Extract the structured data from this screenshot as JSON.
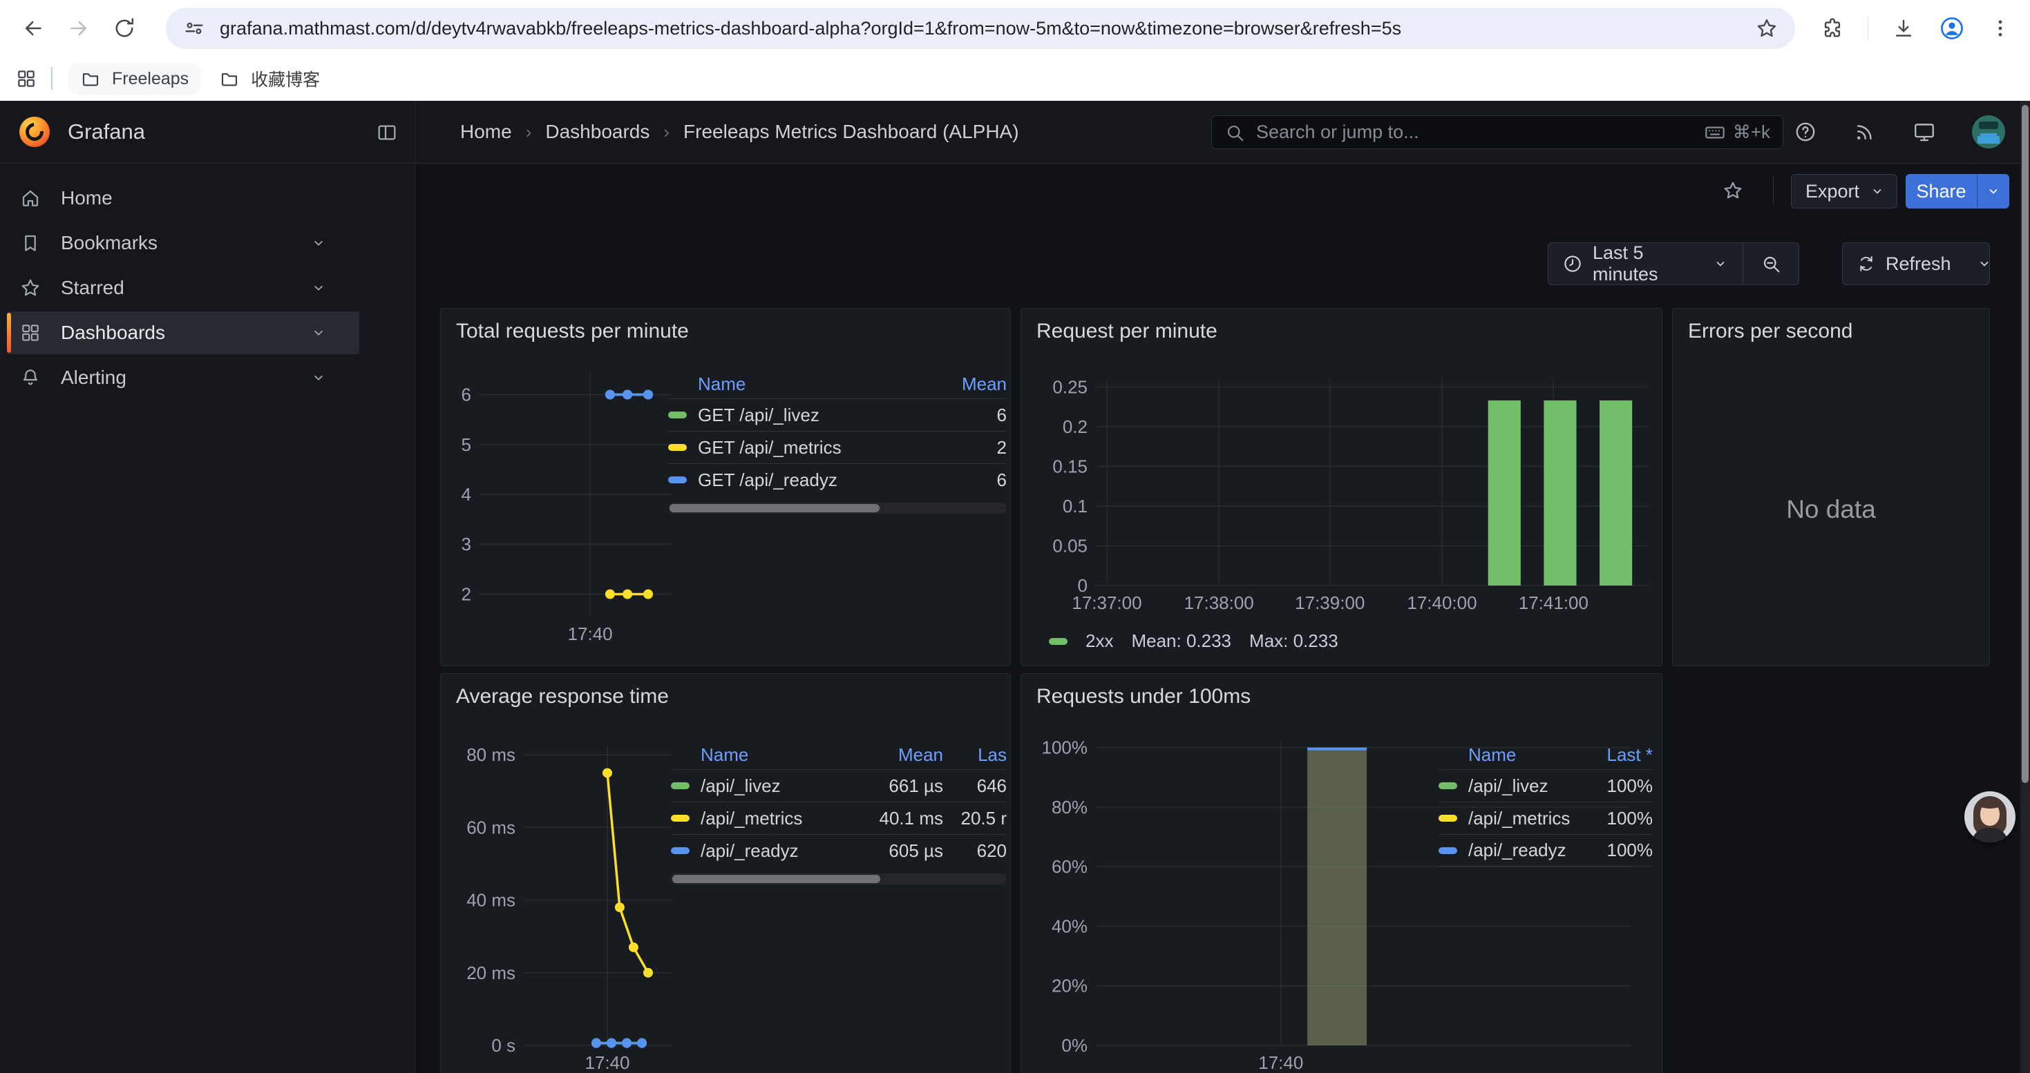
{
  "browser": {
    "url": "grafana.mathmast.com/d/deytv4rwavabkb/freeleaps-metrics-dashboard-alpha?orgId=1&from=now-5m&to=now&timezone=browser&refresh=5s",
    "bookmarks": [
      {
        "label": "Freeleaps",
        "icon": "folder-icon"
      },
      {
        "label": "收藏博客",
        "icon": "folder-icon"
      }
    ]
  },
  "nav": {
    "brand": "Grafana",
    "breadcrumb": [
      "Home",
      "Dashboards",
      "Freeleaps Metrics Dashboard (ALPHA)"
    ],
    "search_placeholder": "Search or jump to...",
    "search_shortcut": "⌘+k"
  },
  "sidebar": {
    "items": [
      {
        "label": "Home",
        "icon": "home-icon",
        "expandable": false,
        "active": false
      },
      {
        "label": "Bookmarks",
        "icon": "bookmark-icon",
        "expandable": true,
        "active": false
      },
      {
        "label": "Starred",
        "icon": "star-icon",
        "expandable": true,
        "active": false
      },
      {
        "label": "Dashboards",
        "icon": "dashboards-grid-icon",
        "expandable": true,
        "active": true
      },
      {
        "label": "Alerting",
        "icon": "bell-icon",
        "expandable": true,
        "active": false
      }
    ]
  },
  "toolbar": {
    "export_label": "Export",
    "share_label": "Share"
  },
  "timebar": {
    "range_label": "Last 5 minutes",
    "refresh_label": "Refresh"
  },
  "colors": {
    "green": "#73bf69",
    "yellow": "#fade2a",
    "blue": "#5794f2",
    "accent_blue": "#3d71d9",
    "orange": "#ff8833"
  },
  "panels": [
    {
      "title": "Total requests per minute",
      "chart_data": {
        "type": "line",
        "ylim": [
          1.55,
          6.45
        ],
        "yticks": [
          {
            "v": 6,
            "label": "6"
          },
          {
            "v": 5,
            "label": "5"
          },
          {
            "v": 4,
            "label": "4"
          },
          {
            "v": 3,
            "label": "3"
          },
          {
            "v": 2,
            "label": "2"
          }
        ],
        "xticks": [
          {
            "f": 0.578,
            "label": "17:40"
          }
        ],
        "series": [
          {
            "name": "GET /api/_livez",
            "color": "#73bf69",
            "points": [
              {
                "f": 0.682,
                "v": 6
              },
              {
                "f": 0.773,
                "v": 6
              },
              {
                "f": 0.881,
                "v": 6
              }
            ]
          },
          {
            "name": "GET /api/_metrics",
            "color": "#fade2a",
            "points": [
              {
                "f": 0.682,
                "v": 2
              },
              {
                "f": 0.773,
                "v": 2
              },
              {
                "f": 0.881,
                "v": 2
              }
            ]
          },
          {
            "name": "GET /api/_readyz",
            "color": "#5794f2",
            "points": [
              {
                "f": 0.682,
                "v": 6
              },
              {
                "f": 0.773,
                "v": 6
              },
              {
                "f": 0.881,
                "v": 6
              }
            ]
          }
        ]
      },
      "legend_table": {
        "columns": [
          "Name",
          "Mean"
        ],
        "col_widths": [
          0,
          120
        ],
        "rows": [
          {
            "color": "#73bf69",
            "name": "GET /api/_livez",
            "values": [
              "6"
            ]
          },
          {
            "color": "#fade2a",
            "name": "GET /api/_metrics",
            "values": [
              "2"
            ]
          },
          {
            "color": "#5794f2",
            "name": "GET /api/_readyz",
            "values": [
              "6"
            ]
          }
        ],
        "scrollbar": true
      }
    },
    {
      "title": "Request per minute",
      "chart_data": {
        "type": "bar",
        "ylim": [
          0,
          0.259
        ],
        "yticks": [
          {
            "v": 0.25,
            "label": "0.25"
          },
          {
            "v": 0.2,
            "label": "0.2"
          },
          {
            "v": 0.15,
            "label": "0.15"
          },
          {
            "v": 0.1,
            "label": "0.1"
          },
          {
            "v": 0.05,
            "label": "0.05"
          },
          {
            "v": 0,
            "label": "0"
          }
        ],
        "xticks": [
          {
            "f": 0.02,
            "label": "17:37:00"
          },
          {
            "f": 0.223,
            "label": "17:38:00"
          },
          {
            "f": 0.424,
            "label": "17:39:00"
          },
          {
            "f": 0.627,
            "label": "17:40:00"
          },
          {
            "f": 0.829,
            "label": "17:41:00"
          }
        ],
        "series": [
          {
            "name": "2xx",
            "type": "bars",
            "color": "#73bf69",
            "bar_width": 0.059,
            "bars": [
              {
                "f": 0.74,
                "v": 0.233
              },
              {
                "f": 0.841,
                "v": 0.233
              },
              {
                "f": 0.942,
                "v": 0.233
              }
            ]
          }
        ]
      },
      "legend_inline": {
        "color": "#73bf69",
        "name": "2xx",
        "stats": [
          "Mean: 0.233",
          "Max: 0.233"
        ]
      }
    },
    {
      "title": "Errors per second",
      "no_data_text": "No data"
    },
    {
      "title": "Average response time",
      "chart_data": {
        "type": "line",
        "ylim": [
          0,
          82.5
        ],
        "yticks": [
          {
            "v": 80,
            "label": "80 ms"
          },
          {
            "v": 60,
            "label": "60 ms"
          },
          {
            "v": 40,
            "label": "40 ms"
          },
          {
            "v": 20,
            "label": "20 ms"
          },
          {
            "v": 0,
            "label": "0 s"
          }
        ],
        "xticks": [
          {
            "f": 0.568,
            "label": "17:40"
          }
        ],
        "series": [
          {
            "name": "/api/_metrics",
            "color": "#fade2a",
            "points": [
              {
                "f": 0.568,
                "v": 75
              },
              {
                "f": 0.652,
                "v": 38
              },
              {
                "f": 0.746,
                "v": 27
              },
              {
                "f": 0.845,
                "v": 20
              }
            ]
          },
          {
            "name": "/api/_livez",
            "color": "#73bf69",
            "points": [
              {
                "f": 0.493,
                "v": 0.66
              },
              {
                "f": 0.596,
                "v": 0.66
              },
              {
                "f": 0.7,
                "v": 0.66
              },
              {
                "f": 0.803,
                "v": 0.66
              }
            ]
          },
          {
            "name": "/api/_readyz",
            "color": "#5794f2",
            "points": [
              {
                "f": 0.493,
                "v": 0.6
              },
              {
                "f": 0.596,
                "v": 0.6
              },
              {
                "f": 0.7,
                "v": 0.6
              },
              {
                "f": 0.803,
                "v": 0.6
              }
            ]
          }
        ]
      },
      "legend_table": {
        "columns": [
          "Name",
          "Mean",
          "Las"
        ],
        "col_widths": [
          0,
          140,
          92
        ],
        "rows": [
          {
            "color": "#73bf69",
            "name": "/api/_livez",
            "values": [
              "661 µs",
              "646"
            ]
          },
          {
            "color": "#fade2a",
            "name": "/api/_metrics",
            "values": [
              "40.1 ms",
              "20.5 r"
            ]
          },
          {
            "color": "#5794f2",
            "name": "/api/_readyz",
            "values": [
              "605 µs",
              "620"
            ]
          }
        ],
        "scrollbar": true
      }
    },
    {
      "title": "Requests under 100ms",
      "chart_data": {
        "type": "bar",
        "ylim": [
          0,
          102
        ],
        "yticks": [
          {
            "v": 100,
            "label": "100%"
          },
          {
            "v": 80,
            "label": "80%"
          },
          {
            "v": 60,
            "label": "60%"
          },
          {
            "v": 40,
            "label": "40%"
          },
          {
            "v": 20,
            "label": "20%"
          },
          {
            "v": 0,
            "label": "0%"
          }
        ],
        "xticks": [
          {
            "f": 0.346,
            "label": "17:40"
          }
        ],
        "series": [
          {
            "name": "/api/_readyz",
            "type": "bars",
            "color": "rgba(154,163,120,0.5)",
            "cap": "#5794f2",
            "bar_width": 0.111,
            "bars": [
              {
                "f": 0.451,
                "v": 100
              }
            ]
          }
        ]
      },
      "legend_table": {
        "columns": [
          "Name",
          "Last *"
        ],
        "col_widths": [
          0,
          110
        ],
        "rows": [
          {
            "color": "#73bf69",
            "name": "/api/_livez",
            "values": [
              "100%"
            ]
          },
          {
            "color": "#fade2a",
            "name": "/api/_metrics",
            "values": [
              "100%"
            ]
          },
          {
            "color": "#5794f2",
            "name": "/api/_readyz",
            "values": [
              "100%"
            ]
          }
        ],
        "scrollbar": false
      }
    }
  ]
}
